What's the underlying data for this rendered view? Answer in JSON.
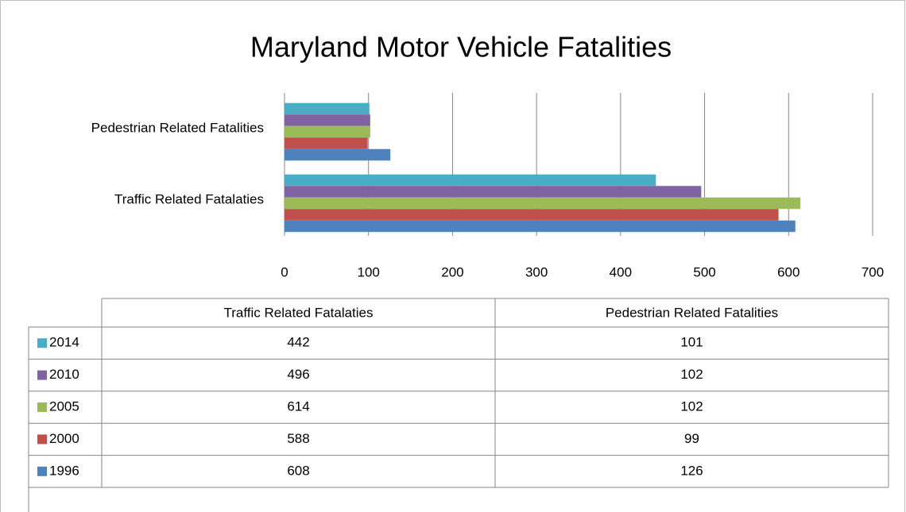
{
  "chart_data": {
    "type": "bar",
    "orientation": "horizontal",
    "title": "Maryland Motor Vehicle Fatalities",
    "categories": [
      "Traffic Related Fatalaties",
      "Pedestrian Related Fatalities"
    ],
    "series": [
      {
        "name": "2014",
        "color": "#4bacc6",
        "values": [
          442,
          101
        ]
      },
      {
        "name": "2010",
        "color": "#8064a2",
        "values": [
          496,
          102
        ]
      },
      {
        "name": "2005",
        "color": "#9bbb59",
        "values": [
          614,
          102
        ]
      },
      {
        "name": "2000",
        "color": "#c0504d",
        "values": [
          588,
          99
        ]
      },
      {
        "name": "1996",
        "color": "#4f81bd",
        "values": [
          608,
          126
        ]
      }
    ],
    "xlim": [
      0,
      700
    ],
    "xticks": [
      0,
      100,
      200,
      300,
      400,
      500,
      600,
      700
    ],
    "grid": true,
    "data_table": true
  }
}
